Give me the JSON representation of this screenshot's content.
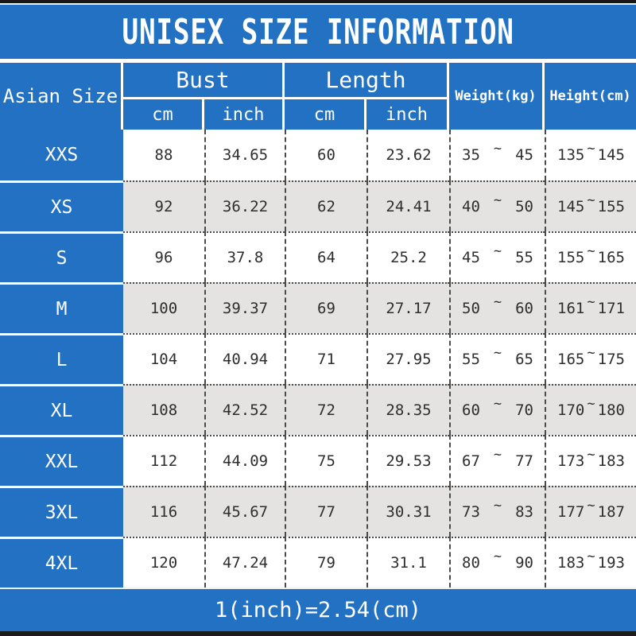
{
  "colors": {
    "accent_blue": "#2271c3",
    "row_alt_gray": "#e4e3e1",
    "bar_black": "#161616",
    "text_dark": "#2e2e2e",
    "text_white": "#ffffff"
  },
  "chart_data": {
    "type": "table",
    "title": "UNISEX SIZE INFORMATION",
    "corner_header": "Asian Size",
    "headers": {
      "bust": "Bust",
      "length": "Length",
      "cm": "cm",
      "inch": "inch",
      "weight": "Weight(kg)",
      "height": "Height(cm)"
    },
    "columns": [
      "Asian Size",
      "Bust cm",
      "Bust inch",
      "Length cm",
      "Length inch",
      "Weight(kg)",
      "Height(cm)"
    ],
    "range_separator": "~",
    "rows": [
      {
        "size": "XXS",
        "bust_cm": "88",
        "bust_inch": "34.65",
        "length_cm": "60",
        "length_inch": "23.62",
        "weight_min": "35",
        "weight_max": "45",
        "height_min": "135",
        "height_max": "145"
      },
      {
        "size": "XS",
        "bust_cm": "92",
        "bust_inch": "36.22",
        "length_cm": "62",
        "length_inch": "24.41",
        "weight_min": "40",
        "weight_max": "50",
        "height_min": "145",
        "height_max": "155"
      },
      {
        "size": "S",
        "bust_cm": "96",
        "bust_inch": "37.8",
        "length_cm": "64",
        "length_inch": "25.2",
        "weight_min": "45",
        "weight_max": "55",
        "height_min": "155",
        "height_max": "165"
      },
      {
        "size": "M",
        "bust_cm": "100",
        "bust_inch": "39.37",
        "length_cm": "69",
        "length_inch": "27.17",
        "weight_min": "50",
        "weight_max": "60",
        "height_min": "161",
        "height_max": "171"
      },
      {
        "size": "L",
        "bust_cm": "104",
        "bust_inch": "40.94",
        "length_cm": "71",
        "length_inch": "27.95",
        "weight_min": "55",
        "weight_max": "65",
        "height_min": "165",
        "height_max": "175"
      },
      {
        "size": "XL",
        "bust_cm": "108",
        "bust_inch": "42.52",
        "length_cm": "72",
        "length_inch": "28.35",
        "weight_min": "60",
        "weight_max": "70",
        "height_min": "170",
        "height_max": "180"
      },
      {
        "size": "XXL",
        "bust_cm": "112",
        "bust_inch": "44.09",
        "length_cm": "75",
        "length_inch": "29.53",
        "weight_min": "67",
        "weight_max": "77",
        "height_min": "173",
        "height_max": "183"
      },
      {
        "size": "3XL",
        "bust_cm": "116",
        "bust_inch": "45.67",
        "length_cm": "77",
        "length_inch": "30.31",
        "weight_min": "73",
        "weight_max": "83",
        "height_min": "177",
        "height_max": "187"
      },
      {
        "size": "4XL",
        "bust_cm": "120",
        "bust_inch": "47.24",
        "length_cm": "79",
        "length_inch": "31.1",
        "weight_min": "80",
        "weight_max": "90",
        "height_min": "183",
        "height_max": "193"
      }
    ],
    "footnote": "1(inch)=2.54(cm)"
  }
}
